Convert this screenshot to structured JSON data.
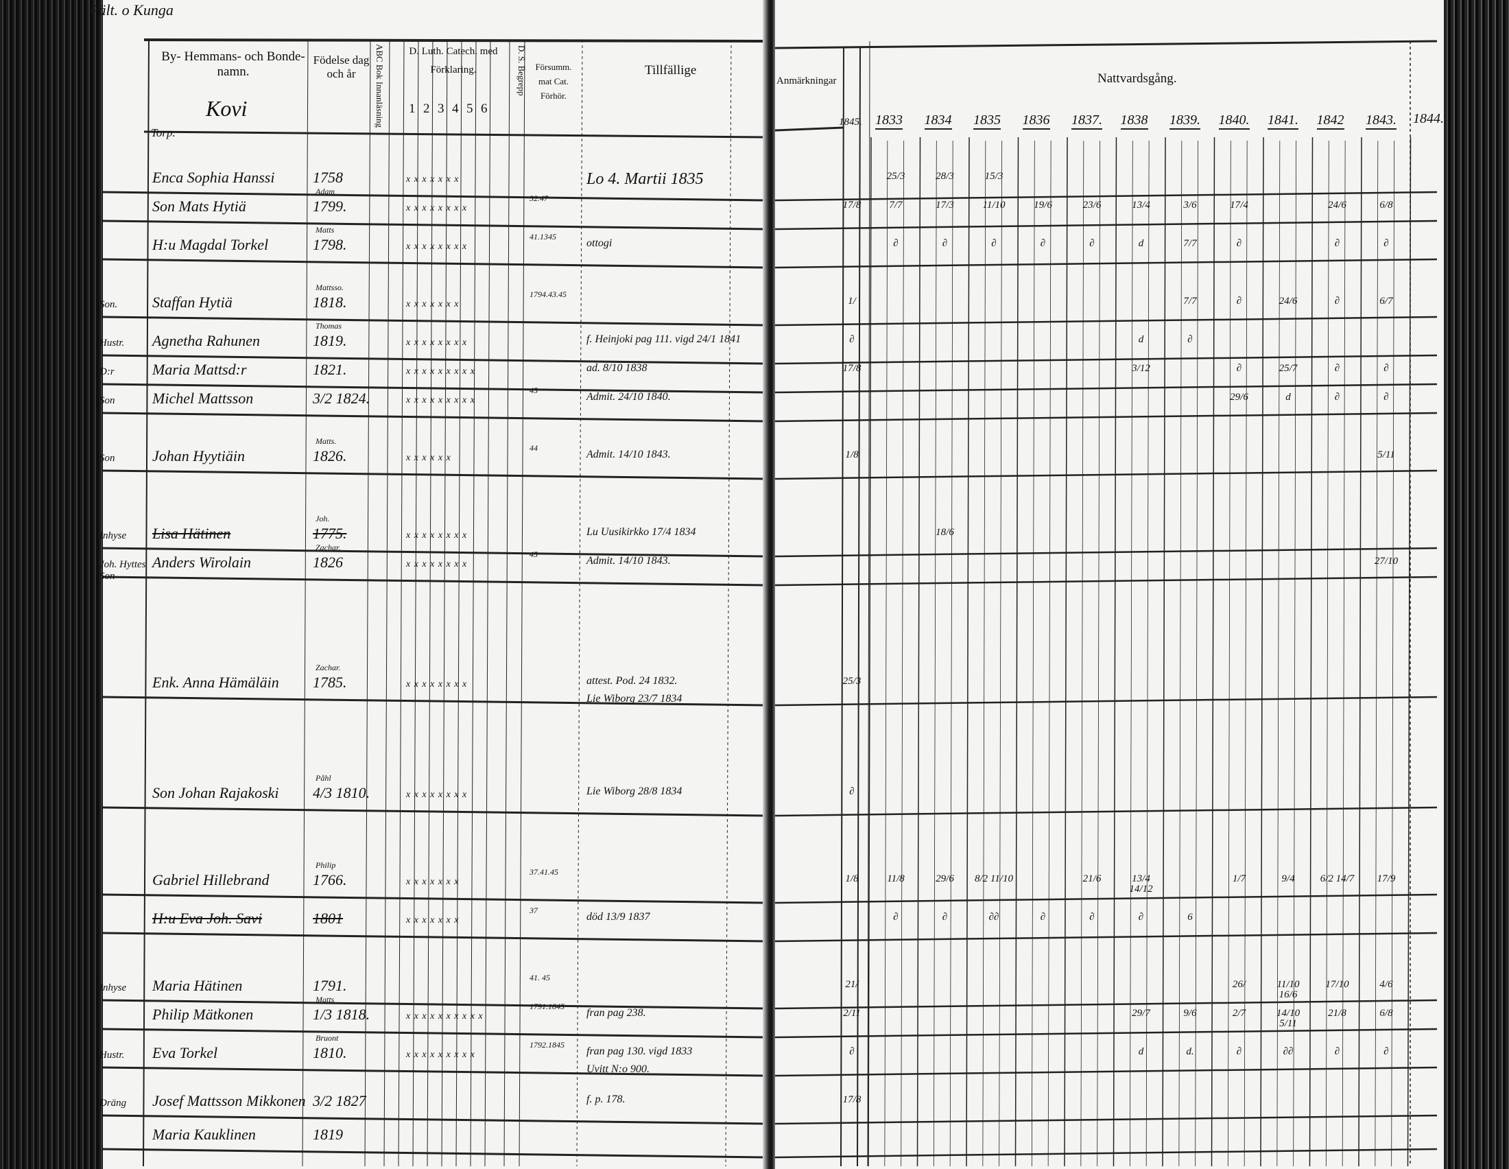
{
  "top_note": "Pält. o Kunga",
  "left_page": {
    "headers": {
      "name": "By- Hemmans- och Bonde-namn.",
      "village": "Kovi",
      "birth": "Födelse dag och år",
      "abc": "ABC Bok Innanläsning",
      "catech": "D. Luth. Catech. med Förklaring.",
      "catech_cols": [
        "1",
        "2",
        "3",
        "4",
        "5",
        "6"
      ],
      "ds": "D. S. Begrepp",
      "forsum": "Försumm. mat Cat. Förhör.",
      "tillfallige": "Tillfällige"
    },
    "section_label": "Torp.",
    "rows": [
      {
        "margin": "",
        "name": "Enca Sophia Hanssi",
        "father": "",
        "year": "1758",
        "marks": "x x x x x x x",
        "forhor": "",
        "note": "Lo 4. Martii 1835",
        "struck": false
      },
      {
        "margin": "",
        "name": "Son Mats Hytiä",
        "father": "Adam",
        "year": "1799.",
        "marks": "x x x x x x x x",
        "forhor": "32.47",
        "note": "",
        "struck": false
      },
      {
        "margin": "",
        "name": "H:u Magdal Torkel",
        "father": "Matts",
        "year": "1798.",
        "marks": "x x x x x x x x",
        "forhor": "41.1345",
        "note": "ottogi",
        "struck": false
      },
      {
        "margin": "Son.",
        "name": "Staffan Hytiä",
        "father": "Mattsso.",
        "year": "1818.",
        "marks": "x x x x x x x",
        "forhor": "1794.43.45",
        "note": "",
        "struck": false
      },
      {
        "margin": "Hustr.",
        "name": "Agnetha Rahunen",
        "father": "Thomas",
        "year": "1819.",
        "marks": "x x x x x x x x",
        "forhor": "",
        "note": "f. Heinjoki pag 111. vigd 24/1 1841",
        "struck": false
      },
      {
        "margin": "D:r",
        "name": "Maria Mattsd:r",
        "father": "",
        "year": "1821.",
        "marks": "x x x x x x x x x",
        "forhor": "",
        "note": "ad. 8/10 1838",
        "struck": false
      },
      {
        "margin": "Son",
        "name": "Michel Mattsson",
        "father": "",
        "year": "3/2 1824.",
        "marks": "x x x x x x x x x",
        "forhor": "45",
        "note": "Admit. 24/10 1840.",
        "struck": false
      },
      {
        "margin": "Son",
        "name": "Johan Hyytiäin",
        "father": "Matts.",
        "year": "1826.",
        "marks": "x x x x x x",
        "forhor": "44",
        "note": "Admit. 14/10 1843.",
        "struck": false
      },
      {
        "margin": "Inhyse",
        "name": "Lisa Hätinen",
        "father": "Joh.",
        "year": "1775.",
        "marks": "x x x x x x x x",
        "forhor": "",
        "note": "Lu Uusikirkko 17/4 1834",
        "struck": true
      },
      {
        "margin": "Joh. Hyttes Son",
        "name": "Anders Wirolain",
        "father": "Zachar.",
        "year": "1826",
        "marks": "x x x x x x x x",
        "forhor": "45",
        "note": "Admit. 14/10 1843.",
        "struck": false
      },
      {
        "margin": "",
        "name": "Enk. Anna Hämäläin",
        "father": "Zachar.",
        "year": "1785.",
        "marks": "x x x x x x x x",
        "forhor": "",
        "note": "attest. Pod. 24 1832. / Lie Wiborg 23/7 1834",
        "struck": false
      },
      {
        "margin": "",
        "name": "Son Johan Rajakoski",
        "father": "Påhl",
        "year": "4/3 1810.",
        "marks": "x x x x x x x x",
        "forhor": "",
        "note": "Lie Wiborg 28/8 1834",
        "struck": false
      },
      {
        "margin": "",
        "name": "Gabriel Hillebrand",
        "father": "Philip",
        "year": "1766.",
        "marks": "x x x x x x x",
        "forhor": "37.41.45",
        "note": "",
        "struck": false
      },
      {
        "margin": "",
        "name": "H:u Eva Joh. Savi",
        "father": "",
        "year": "1801",
        "marks": "x x x x x x x",
        "forhor": "37",
        "note": "död 13/9 1837",
        "struck": true
      },
      {
        "margin": "Inhyse",
        "name": "Maria Hätinen",
        "father": "",
        "year": "1791.",
        "marks": "",
        "forhor": "41. 45",
        "note": "",
        "struck": false
      },
      {
        "margin": "",
        "name": "Philip Mätkonen",
        "father": "Matts",
        "year": "1/3 1818.",
        "marks": "x x x x x x x x x x",
        "forhor": "1791.1845",
        "note": "fran pag 238.",
        "struck": false
      },
      {
        "margin": "Hustr.",
        "name": "Eva Torkel",
        "father": "Bruont",
        "year": "1810.",
        "marks": "x x x x x x x x x",
        "forhor": "1792.1845",
        "note": "fran pag 130. vigd 1833 / Uvitt N:o 900.",
        "struck": false
      },
      {
        "margin": "Dräng",
        "name": "Josef Mattsson Mikkonen",
        "father": "",
        "year": "3/2 1827",
        "marks": "",
        "forhor": "",
        "note": "f. p. 178.",
        "struck": false
      },
      {
        "margin": "",
        "name": "Maria Kauklinen",
        "father": "",
        "year": "1819",
        "marks": "",
        "forhor": "",
        "note": "",
        "struck": false
      }
    ]
  },
  "right_page": {
    "anmarkningar": "Anmärkningar",
    "title": "Nattvardsgång.",
    "margin_year": "1845.",
    "years": [
      "1833",
      "1834",
      "1835",
      "1836",
      "1837.",
      "1838",
      "1839.",
      "1840.",
      "1841.",
      "1842",
      "1843."
    ],
    "last_year": "1844.",
    "rows": [
      {
        "m": "",
        "c": {
          "0": "25/3",
          "1": "28/3",
          "2": "15/3"
        }
      },
      {
        "m": "17/8",
        "c": {
          "0": "7/7",
          "1": "17/3",
          "2": "11/10",
          "3": "19/6",
          "4": "23/6",
          "5": "13/4",
          "6": "3/6",
          "7": "17/4",
          "9": "24/6",
          "10": "6/8"
        }
      },
      {
        "m": "",
        "c": {
          "0": "∂",
          "1": "∂",
          "2": "∂",
          "3": "∂",
          "4": "∂",
          "5": "d",
          "6": "7/7",
          "7": "∂",
          "9": "∂",
          "10": "∂"
        }
      },
      {
        "m": "1/",
        "c": {
          "6": "7/7",
          "7": "∂",
          "8": "24/6",
          "9": "∂",
          "10": "6/7"
        }
      },
      {
        "m": "∂",
        "c": {
          "5": "d",
          "6": "∂"
        }
      },
      {
        "m": "17/8",
        "c": {
          "5": "3/12",
          "7": "∂",
          "8": "25/7",
          "9": "∂",
          "10": "∂"
        }
      },
      {
        "m": "",
        "c": {
          "7": "29/6",
          "8": "d",
          "9": "∂",
          "10": "∂"
        }
      },
      {
        "m": "1/8",
        "c": {
          "10": "5/11"
        }
      },
      {
        "m": "",
        "c": {
          "1": "18/6"
        }
      },
      {
        "m": "",
        "c": {
          "10": "27/10"
        }
      },
      {
        "m": "25/3",
        "c": {}
      },
      {
        "m": "∂",
        "c": {}
      },
      {
        "m": "1/8",
        "c": {
          "0": "11/8",
          "1": "29/6",
          "2": "8/2 11/10",
          "4": "21/6",
          "5": "13/4 14/12",
          "7": "1/7",
          "8": "9/4",
          "9": "6/2 14/7",
          "10": "17/9"
        }
      },
      {
        "m": "",
        "c": {
          "0": "∂",
          "1": "∂",
          "2": "∂∂",
          "3": "∂",
          "4": "∂",
          "5": "∂",
          "6": "6"
        }
      },
      {
        "m": "21/",
        "c": {
          "7": "26/",
          "8": "11/10 16/6",
          "9": "17/10",
          "10": "4/6"
        }
      },
      {
        "m": "2/11",
        "c": {
          "5": "29/7",
          "6": "9/6",
          "7": "2/7",
          "8": "14/10 5/11",
          "9": "21/8",
          "10": "6/8"
        }
      },
      {
        "m": "∂",
        "c": {
          "5": "d",
          "6": "d.",
          "7": "∂",
          "8": "∂∂",
          "9": "∂",
          "10": "∂"
        }
      },
      {
        "m": "17/8",
        "c": {}
      },
      {
        "m": "",
        "c": {}
      }
    ]
  },
  "colors": {
    "paper": "#f4f4f2",
    "ink": "#111111",
    "background": "#111111"
  }
}
